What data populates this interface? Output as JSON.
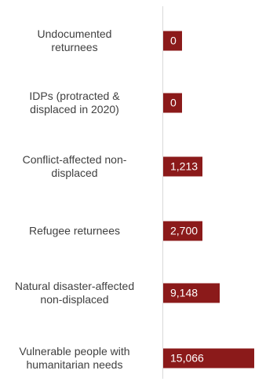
{
  "chart_data": {
    "type": "bar",
    "orientation": "horizontal",
    "categories": [
      "Undocumented returnees",
      "IDPs (protracted & displaced in 2020)",
      "Conflict-affected non-displaced",
      "Refugee returnees",
      "Natural disaster-affected non-displaced",
      "Vulnerable people with humanitarian needs"
    ],
    "values": [
      0,
      0,
      1213,
      2700,
      9148,
      15066
    ],
    "value_labels": [
      "0",
      "0",
      "1,213",
      "2,700",
      "9,148",
      "15,066"
    ],
    "bar_color": "#8b1a1a",
    "grid": false,
    "legend": "none"
  }
}
